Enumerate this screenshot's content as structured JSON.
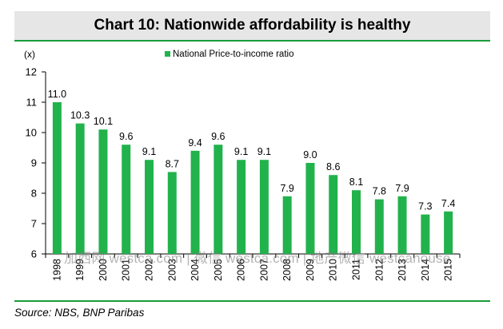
{
  "title": "Chart 10: Nationwide affordability is healthy",
  "source": "Source: NBS, BNP Paribas",
  "watermark": "加西网 westca.com | 微信 westca.com | 地产微信 westcahouse",
  "colors": {
    "bar": "#22b24c",
    "accent": "#1a9b3a",
    "title_bg": "#e6e6e6"
  },
  "chart_data": {
    "type": "bar",
    "unit_label": "(x)",
    "series": [
      {
        "name": "National Price-to-income ratio",
        "values": [
          11.0,
          10.3,
          10.1,
          9.6,
          9.1,
          8.7,
          9.4,
          9.6,
          9.1,
          9.1,
          7.9,
          9.0,
          8.6,
          8.1,
          7.8,
          7.9,
          7.3,
          7.4
        ]
      }
    ],
    "categories": [
      "1998",
      "1999",
      "2000",
      "2001",
      "2002",
      "2003",
      "2004",
      "2005",
      "2006",
      "2007",
      "2008",
      "2009",
      "2010",
      "2011",
      "2012",
      "2013",
      "2014",
      "2015"
    ],
    "data_labels": [
      "11.0",
      "10.3",
      "10.1",
      "9.6",
      "9.1",
      "8.7",
      "9.4",
      "9.6",
      "9.1",
      "9.1",
      "7.9",
      "9.0",
      "8.6",
      "8.1",
      "7.8",
      "7.9",
      "7.3",
      "7.4"
    ],
    "ylim": [
      6,
      12
    ],
    "yticks": [
      6,
      7,
      8,
      9,
      10,
      11,
      12
    ],
    "legend_position": "top-center",
    "grid": false
  }
}
